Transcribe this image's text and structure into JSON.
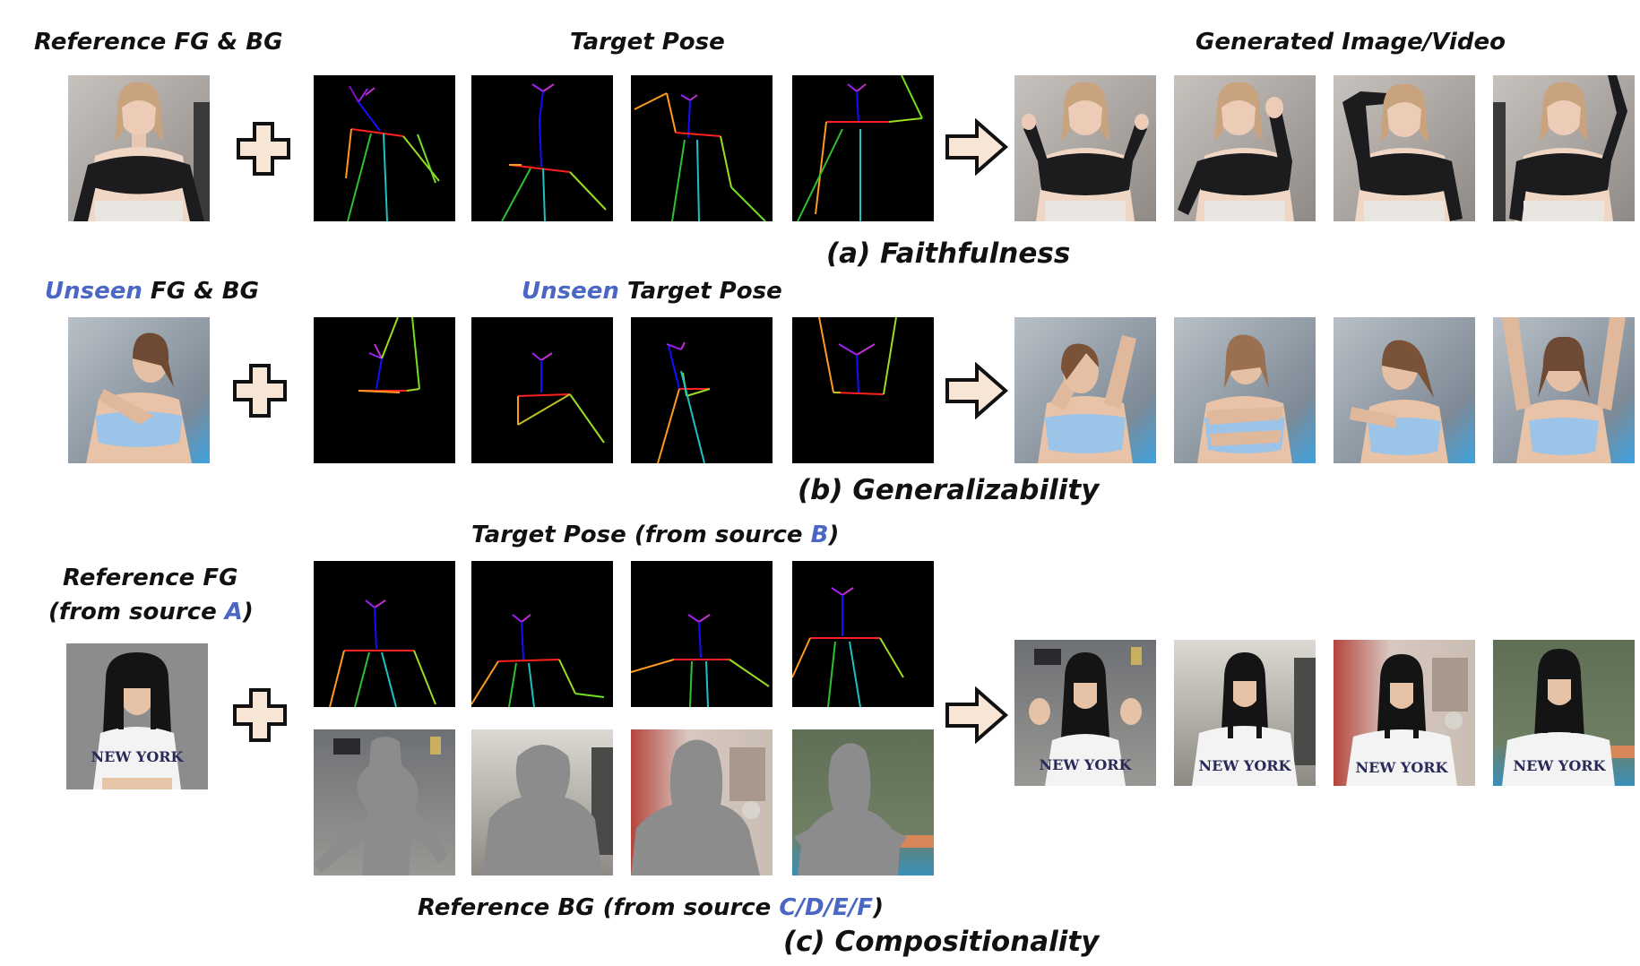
{
  "row_a": {
    "ref_label": "Reference FG & BG",
    "pose_label": "Target Pose",
    "output_label": "Generated Image/Video",
    "caption": "(a) Faithfulness"
  },
  "row_b": {
    "ref_label_unseen": "Unseen",
    "ref_label_rest": " FG & BG",
    "pose_label_unseen": "Unseen",
    "pose_label_rest": " Target Pose",
    "caption": "(b) Generalizability"
  },
  "row_c": {
    "pose_label_pre": "Target Pose (from source ",
    "pose_label_src": "B",
    "pose_label_post": ")",
    "ref_fg_line1": "Reference FG",
    "ref_fg_line2_pre": "(from source ",
    "ref_fg_line2_src": "A",
    "ref_fg_line2_post": ")",
    "bg_label_pre": "Reference BG (from source ",
    "bg_label_src": "C/D/E/F",
    "bg_label_post": ")",
    "caption": "(c) Compositionality"
  },
  "shirt_text": "NEW YORK",
  "colors": {
    "accent_blue": "#4a67c4",
    "pose_bg": "#000000",
    "arrow_fill": "#f7e6d6",
    "mask_gray": "#8c8c8c"
  }
}
